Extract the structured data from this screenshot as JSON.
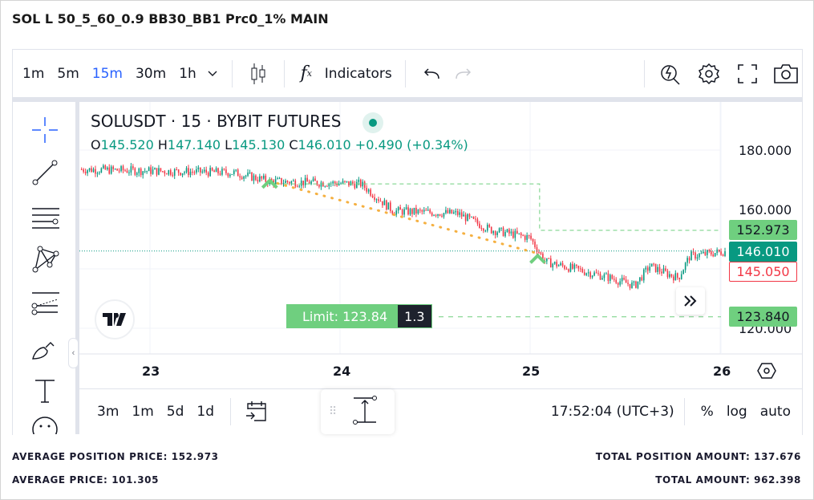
{
  "title": "SOL L 50_5_60_0.9 BB30_BB1 Prc0_1% MAIN",
  "toolbar": {
    "timeframes": [
      "1m",
      "5m",
      "15m",
      "30m",
      "1h"
    ],
    "active": "15m",
    "indicators": "Indicators"
  },
  "legend": {
    "symbol": "SOLUSDT · 15 · BYBIT FUTURES",
    "o_label": "O",
    "o": "145.520",
    "h_label": "H",
    "h": "147.140",
    "l_label": "L",
    "l": "145.130",
    "c_label": "C",
    "c": "146.010",
    "change": "+0.490 (+0.34%)"
  },
  "price_axis": {
    "ticks": [
      "180.000",
      "160.000",
      "120.000"
    ]
  },
  "price_labels": {
    "position": "152.973",
    "last": "146.010",
    "bid": "145.050",
    "limit": "123.840"
  },
  "limit_order": {
    "label": "Limit: 123.84",
    "qty": "1.3"
  },
  "time_axis": {
    "ticks": [
      "23",
      "24",
      "25",
      "26"
    ]
  },
  "bottombar": {
    "ranges": [
      "3m",
      "1m",
      "5d",
      "1d"
    ],
    "clock": "17:52:04 (UTC+3)",
    "percent": "%",
    "log": "log",
    "auto": "auto"
  },
  "stats": {
    "avg_position_price": "AVERAGE POSITION PRICE: 152.973",
    "avg_price": "AVERAGE PRICE: 101.305",
    "total_position": "TOTAL POSITION AMOUNT: 137.676",
    "total_amount": "TOTAL AMOUNT: 962.398"
  },
  "colors": {
    "up": "#089981",
    "down": "#f23645",
    "accent": "#2962ff",
    "order_green": "#6fcf7f",
    "trend": "#f5b041"
  },
  "chart_data": {
    "type": "candlestick",
    "price_range": [
      113,
      196
    ],
    "day_range": [
      22.64,
      26.03
    ],
    "path": [
      [
        22.64,
        173.5
      ],
      [
        23.44,
        172.4
      ],
      [
        23.63,
        169.5
      ],
      [
        24.11,
        168.6
      ],
      [
        24.28,
        159.5
      ],
      [
        24.62,
        158.6
      ],
      [
        24.79,
        153.2
      ],
      [
        25.0,
        150.5
      ],
      [
        25.08,
        142.4
      ],
      [
        25.42,
        137
      ],
      [
        25.55,
        134.3
      ],
      [
        25.63,
        141
      ],
      [
        25.72,
        138.4
      ],
      [
        25.78,
        137
      ],
      [
        25.84,
        144.3
      ],
      [
        26.03,
        145.9
      ]
    ],
    "position_price": 152.973,
    "last_price": 146.01,
    "limit_price": 123.84,
    "trend_from": [
      23.63,
      169.5
    ],
    "trend_to": [
      25.04,
      145.2
    ]
  }
}
